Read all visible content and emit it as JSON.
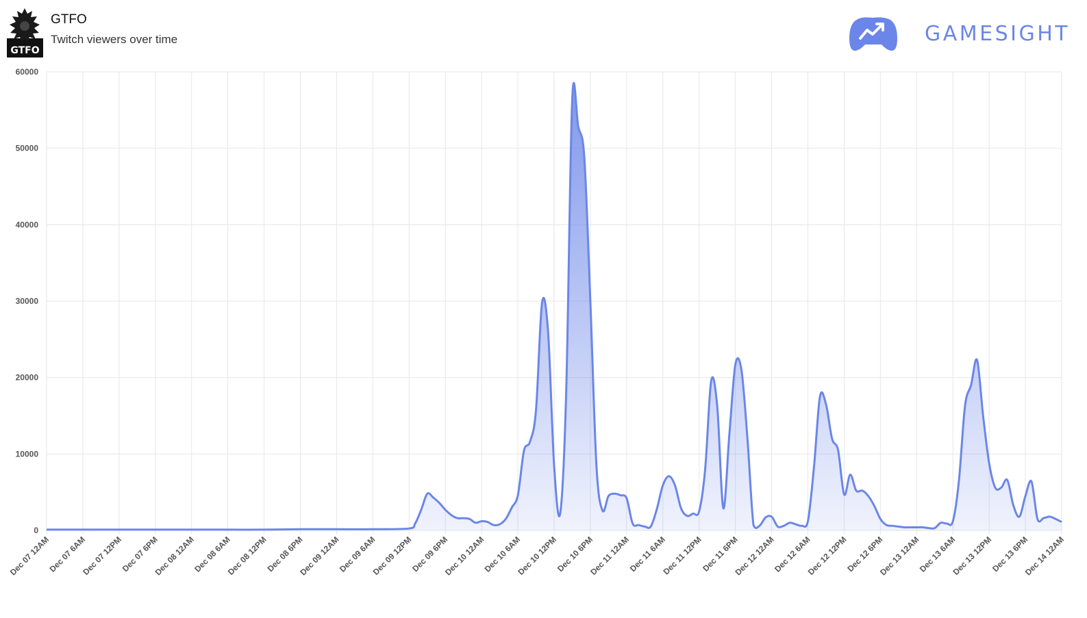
{
  "header": {
    "game_title": "GTFO",
    "game_logo_text": "GTFO",
    "subtitle": "Twitch viewers over time",
    "brand_name": "GAMESIGHT",
    "brand_color": "#6b86e8"
  },
  "chart_data": {
    "type": "area",
    "title": "Twitch viewers over time",
    "xlabel": "",
    "ylabel": "",
    "ylim": [
      0,
      60000
    ],
    "yticks": [
      0,
      10000,
      20000,
      30000,
      40000,
      50000,
      60000
    ],
    "x_start": "Dec 07 12AM",
    "x_end": "Dec 14 12AM",
    "x_ticks": [
      "Dec 07 12AM",
      "Dec 07 6AM",
      "Dec 07 12PM",
      "Dec 07 6PM",
      "Dec 08 12AM",
      "Dec 08 6AM",
      "Dec 08 12PM",
      "Dec 08 6PM",
      "Dec 09 12AM",
      "Dec 09 6AM",
      "Dec 09 12PM",
      "Dec 09 6PM",
      "Dec 10 12AM",
      "Dec 10 6AM",
      "Dec 10 12PM",
      "Dec 10 6PM",
      "Dec 11 12AM",
      "Dec 11 6AM",
      "Dec 11 12PM",
      "Dec 11 6PM",
      "Dec 12 12AM",
      "Dec 12 6AM",
      "Dec 12 12PM",
      "Dec 12 6PM",
      "Dec 13 12AM",
      "Dec 13 6AM",
      "Dec 13 12PM",
      "Dec 13 6PM",
      "Dec 14 12AM"
    ],
    "grid": true,
    "legend": "none",
    "line_color": "#6b86e8",
    "fill_color": "#6b86e8",
    "series": [
      {
        "points": [
          [
            "Dec 07 12AM",
            100
          ],
          [
            "Dec 07 6AM",
            100
          ],
          [
            "Dec 07 12PM",
            100
          ],
          [
            "Dec 07 6PM",
            100
          ],
          [
            "Dec 08 12AM",
            100
          ],
          [
            "Dec 08 6AM",
            100
          ],
          [
            "Dec 08 12PM",
            100
          ],
          [
            "Dec 08 6PM",
            150
          ],
          [
            "Dec 09 12AM",
            150
          ],
          [
            "Dec 09 6AM",
            150
          ],
          [
            "Dec 09 12PM",
            250
          ],
          [
            "Dec 09 1PM",
            900
          ],
          [
            "Dec 09 2PM",
            2700
          ],
          [
            "Dec 09 3PM",
            4800
          ],
          [
            "Dec 09 4PM",
            4300
          ],
          [
            "Dec 09 5PM",
            3600
          ],
          [
            "Dec 09 6PM",
            2700
          ],
          [
            "Dec 09 7PM",
            2000
          ],
          [
            "Dec 09 8PM",
            1600
          ],
          [
            "Dec 09 9PM",
            1600
          ],
          [
            "Dec 09 10PM",
            1500
          ],
          [
            "Dec 09 11PM",
            1000
          ],
          [
            "Dec 10 12AM",
            1200
          ],
          [
            "Dec 10 1AM",
            1100
          ],
          [
            "Dec 10 2AM",
            700
          ],
          [
            "Dec 10 3AM",
            800
          ],
          [
            "Dec 10 4AM",
            1500
          ],
          [
            "Dec 10 5AM",
            3000
          ],
          [
            "Dec 10 6AM",
            4600
          ],
          [
            "Dec 10 7AM",
            10400
          ],
          [
            "Dec 10 8AM",
            11600
          ],
          [
            "Dec 10 9AM",
            15700
          ],
          [
            "Dec 10 10AM",
            29800
          ],
          [
            "Dec 10 11AM",
            26000
          ],
          [
            "Dec 10 12PM",
            8500
          ],
          [
            "Dec 10 1PM",
            2200
          ],
          [
            "Dec 10 2PM",
            18000
          ],
          [
            "Dec 10 3PM",
            56500
          ],
          [
            "Dec 10 4PM",
            52800
          ],
          [
            "Dec 10 5PM",
            48800
          ],
          [
            "Dec 10 6PM",
            30000
          ],
          [
            "Dec 10 7PM",
            8500
          ],
          [
            "Dec 10 8PM",
            2600
          ],
          [
            "Dec 10 9PM",
            4500
          ],
          [
            "Dec 10 10PM",
            4800
          ],
          [
            "Dec 10 11PM",
            4600
          ],
          [
            "Dec 11 12AM",
            4200
          ],
          [
            "Dec 11 1AM",
            900
          ],
          [
            "Dec 11 2AM",
            700
          ],
          [
            "Dec 11 3AM",
            500
          ],
          [
            "Dec 11 4AM",
            500
          ],
          [
            "Dec 11 5AM",
            2800
          ],
          [
            "Dec 11 6AM",
            5900
          ],
          [
            "Dec 11 7AM",
            7100
          ],
          [
            "Dec 11 8AM",
            5900
          ],
          [
            "Dec 11 9AM",
            2900
          ],
          [
            "Dec 11 10AM",
            1900
          ],
          [
            "Dec 11 11AM",
            2200
          ],
          [
            "Dec 11 12PM",
            2500
          ],
          [
            "Dec 11 1PM",
            8000
          ],
          [
            "Dec 11 2PM",
            19600
          ],
          [
            "Dec 11 3PM",
            16200
          ],
          [
            "Dec 11 4PM",
            2900
          ],
          [
            "Dec 11 5PM",
            12500
          ],
          [
            "Dec 11 6PM",
            21700
          ],
          [
            "Dec 11 7PM",
            21000
          ],
          [
            "Dec 11 8PM",
            12000
          ],
          [
            "Dec 11 9PM",
            700
          ],
          [
            "Dec 11 10PM",
            600
          ],
          [
            "Dec 11 11PM",
            1700
          ],
          [
            "Dec 12 12AM",
            1800
          ],
          [
            "Dec 12 1AM",
            500
          ],
          [
            "Dec 12 2AM",
            600
          ],
          [
            "Dec 12 3AM",
            1000
          ],
          [
            "Dec 12 4AM",
            800
          ],
          [
            "Dec 12 5AM",
            600
          ],
          [
            "Dec 12 6AM",
            1200
          ],
          [
            "Dec 12 7AM",
            8200
          ],
          [
            "Dec 12 8AM",
            17500
          ],
          [
            "Dec 12 9AM",
            16500
          ],
          [
            "Dec 12 10AM",
            12000
          ],
          [
            "Dec 12 11AM",
            10500
          ],
          [
            "Dec 12 12PM",
            4700
          ],
          [
            "Dec 12 1PM",
            7300
          ],
          [
            "Dec 12 2PM",
            5200
          ],
          [
            "Dec 12 3PM",
            5200
          ],
          [
            "Dec 12 4PM",
            4500
          ],
          [
            "Dec 12 5PM",
            3200
          ],
          [
            "Dec 12 6PM",
            1500
          ],
          [
            "Dec 12 7PM",
            700
          ],
          [
            "Dec 12 8PM",
            600
          ],
          [
            "Dec 12 9PM",
            500
          ],
          [
            "Dec 12 10PM",
            400
          ],
          [
            "Dec 12 11PM",
            400
          ],
          [
            "Dec 13 12AM",
            400
          ],
          [
            "Dec 13 1AM",
            400
          ],
          [
            "Dec 13 2AM",
            300
          ],
          [
            "Dec 13 3AM",
            300
          ],
          [
            "Dec 13 4AM",
            1000
          ],
          [
            "Dec 13 5AM",
            900
          ],
          [
            "Dec 13 6AM",
            1200
          ],
          [
            "Dec 13 7AM",
            6500
          ],
          [
            "Dec 13 8AM",
            16300
          ],
          [
            "Dec 13 9AM",
            19000
          ],
          [
            "Dec 13 10AM",
            22300
          ],
          [
            "Dec 13 11AM",
            15000
          ],
          [
            "Dec 13 12PM",
            8800
          ],
          [
            "Dec 13 1PM",
            5600
          ],
          [
            "Dec 13 2PM",
            5600
          ],
          [
            "Dec 13 3PM",
            6600
          ],
          [
            "Dec 13 4PM",
            3300
          ],
          [
            "Dec 13 5PM",
            1800
          ],
          [
            "Dec 13 6PM",
            4500
          ],
          [
            "Dec 13 7PM",
            6400
          ],
          [
            "Dec 13 8PM",
            1500
          ],
          [
            "Dec 13 9PM",
            1600
          ],
          [
            "Dec 13 10PM",
            1800
          ],
          [
            "Dec 13 11PM",
            1500
          ],
          [
            "Dec 14 12AM",
            1100
          ]
        ]
      }
    ]
  }
}
